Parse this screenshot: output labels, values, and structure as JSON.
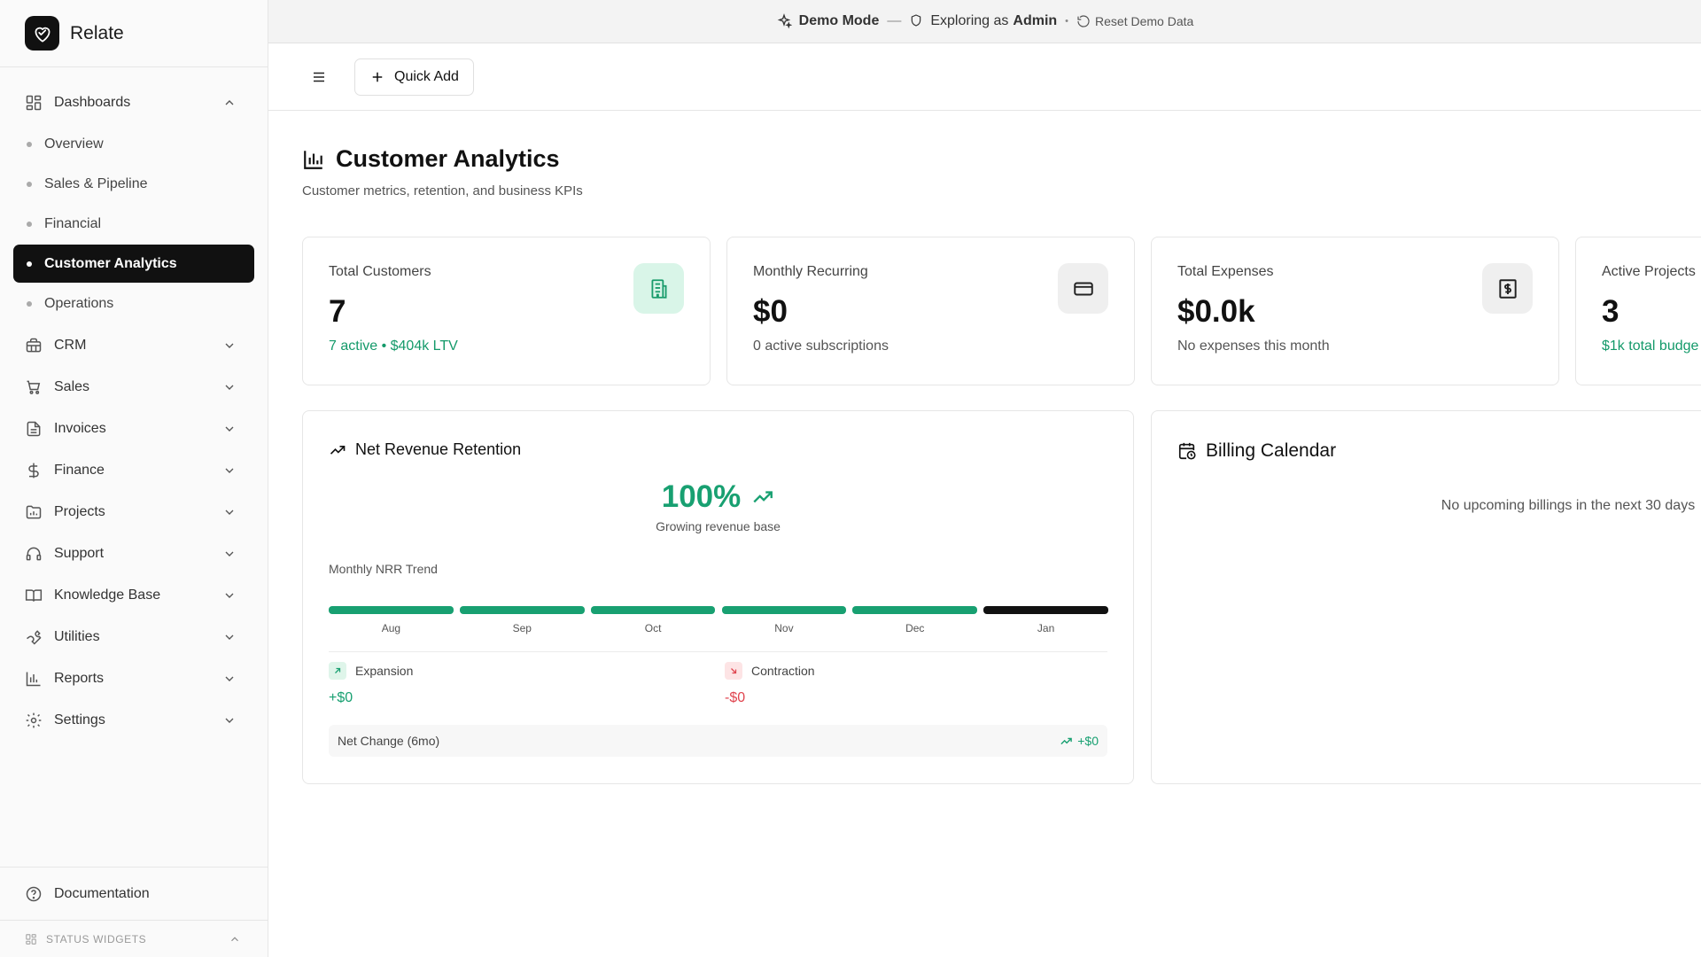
{
  "brand": {
    "name": "Relate"
  },
  "banner": {
    "mode": "Demo Mode",
    "dash": "—",
    "exploring_prefix": "Exploring as",
    "role": "Admin",
    "separator": "•",
    "reset_label": "Reset Demo Data"
  },
  "toolbar": {
    "quick_add": "Quick Add"
  },
  "sidebar": {
    "dashboards": {
      "label": "Dashboards",
      "icon": "layout-grid-icon",
      "expanded": true,
      "items": [
        {
          "label": "Overview",
          "active": false
        },
        {
          "label": "Sales & Pipeline",
          "active": false
        },
        {
          "label": "Financial",
          "active": false
        },
        {
          "label": "Customer Analytics",
          "active": true
        },
        {
          "label": "Operations",
          "active": false
        }
      ]
    },
    "groups": [
      {
        "label": "CRM",
        "icon": "briefcase-icon"
      },
      {
        "label": "Sales",
        "icon": "cart-icon"
      },
      {
        "label": "Invoices",
        "icon": "document-icon"
      },
      {
        "label": "Finance",
        "icon": "dollar-icon"
      },
      {
        "label": "Projects",
        "icon": "folder-chart-icon"
      },
      {
        "label": "Support",
        "icon": "headphones-icon"
      },
      {
        "label": "Knowledge Base",
        "icon": "book-icon"
      },
      {
        "label": "Utilities",
        "icon": "wrench-icon"
      },
      {
        "label": "Reports",
        "icon": "bar-chart-icon"
      },
      {
        "label": "Settings",
        "icon": "gear-icon"
      }
    ],
    "documentation": "Documentation",
    "status_widgets": "STATUS WIDGETS"
  },
  "page": {
    "title": "Customer Analytics",
    "subtitle": "Customer metrics, retention, and business KPIs"
  },
  "kpis": [
    {
      "label": "Total Customers",
      "value": "7",
      "footer": "7 active • $404k LTV",
      "footer_color": "#149a6a",
      "icon": "building-icon"
    },
    {
      "label": "Monthly Recurring",
      "value": "$0",
      "footer": "0 active subscriptions",
      "footer_color": "#555555",
      "icon": "credit-card-icon"
    },
    {
      "label": "Total Expenses",
      "value": "$0.0k",
      "footer": "No expenses this month",
      "footer_color": "#555555",
      "icon": "receipt-dollar-icon"
    },
    {
      "label": "Active Projects",
      "value": "3",
      "footer": "$1k total budge",
      "footer_color": "#149a6a",
      "icon": "folder-icon"
    }
  ],
  "nrr": {
    "title": "Net Revenue Retention",
    "value": "100%",
    "caption": "Growing revenue base",
    "trend_label": "Monthly NRR Trend",
    "months": [
      "Aug",
      "Sep",
      "Oct",
      "Nov",
      "Dec",
      "Jan"
    ],
    "bar_colors": [
      "#18a071",
      "#18a071",
      "#18a071",
      "#18a071",
      "#18a071",
      "#111111"
    ],
    "expansion_label": "Expansion",
    "expansion_value": "+$0",
    "contraction_label": "Contraction",
    "contraction_value": "-$0",
    "net_change_label": "Net Change (6mo)",
    "net_change_value": "+$0"
  },
  "billing": {
    "title": "Billing Calendar",
    "empty": "No upcoming billings in the next 30 days"
  },
  "colors": {
    "accent_green": "#18a071",
    "negative_red": "#e0454f",
    "active_nav": "#111111"
  }
}
